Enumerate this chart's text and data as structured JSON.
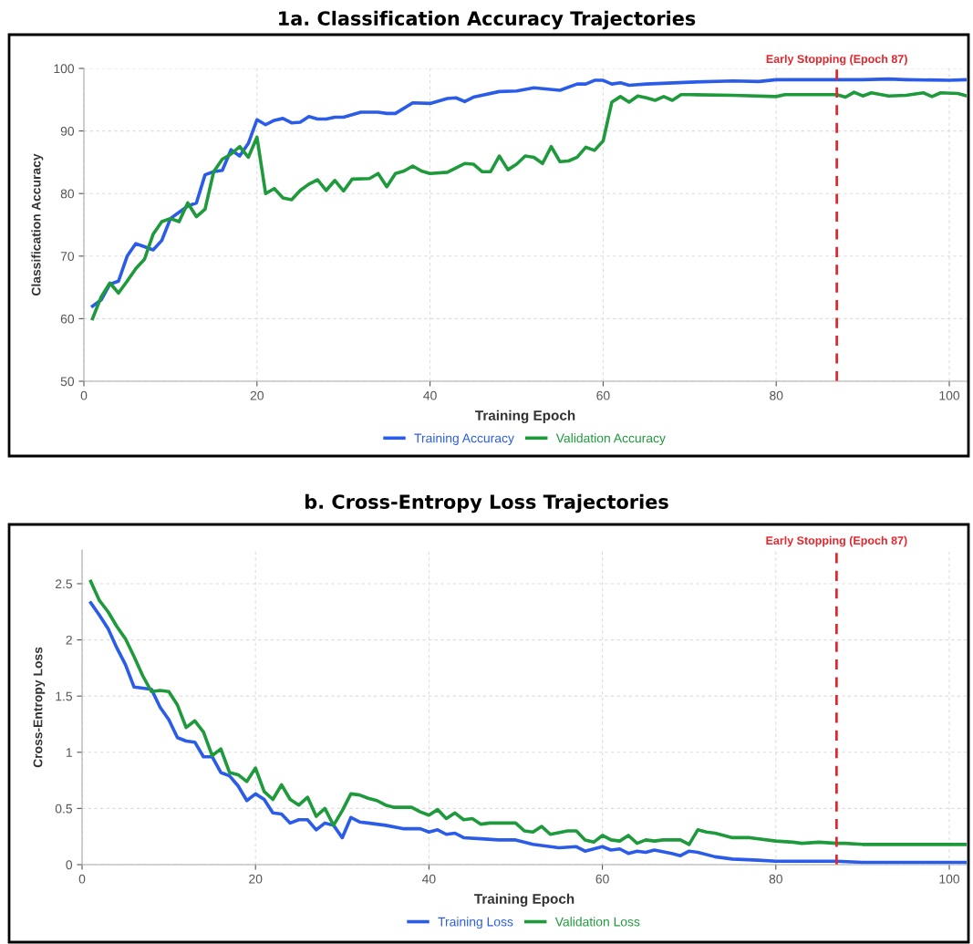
{
  "chart_data": [
    {
      "type": "line",
      "title": "1a. Classification Accuracy Trajectories",
      "xlabel": "Training Epoch",
      "ylabel": "Classification Accuracy",
      "xlim": [
        0,
        102
      ],
      "xticks": [
        0,
        20,
        40,
        60,
        80,
        100
      ],
      "ylim": [
        50,
        100
      ],
      "yticks": [
        50,
        60,
        70,
        80,
        90,
        100
      ],
      "grid": true,
      "legend": "bottom",
      "ref_lines": [
        {
          "axis": "x",
          "value": 87,
          "label": "Early Stopping (Epoch 87)",
          "color": "#e0282e",
          "line_style": "dashed"
        }
      ],
      "series": [
        {
          "name": "Training Accuracy",
          "color": "#2b5ce8",
          "x": [
            1,
            2,
            3,
            4,
            5,
            6,
            7,
            8,
            9,
            10,
            11,
            12,
            13,
            14,
            15,
            16,
            17,
            18,
            19,
            20,
            21,
            22,
            23,
            24,
            25,
            26,
            27,
            28,
            29,
            30,
            32,
            34,
            35,
            36,
            38,
            40,
            42,
            43,
            44,
            45,
            48,
            50,
            52,
            55,
            57,
            58,
            59,
            60,
            61,
            62,
            63,
            65,
            70,
            75,
            78,
            80,
            90,
            93,
            95,
            100,
            102
          ],
          "values": [
            62,
            63,
            65.5,
            66,
            70,
            72,
            71.5,
            71,
            72.5,
            76,
            77,
            78,
            78.5,
            83,
            83.5,
            83.7,
            87,
            86,
            88,
            91.8,
            91,
            91.7,
            92,
            91.3,
            91.4,
            92.3,
            91.9,
            91.9,
            92.2,
            92.2,
            93,
            93,
            92.8,
            92.8,
            94.5,
            94.4,
            95.2,
            95.3,
            94.7,
            95.4,
            96.3,
            96.4,
            96.9,
            96.5,
            97.5,
            97.5,
            98.1,
            98.1,
            97.5,
            97.7,
            97.3,
            97.5,
            97.8,
            98.0,
            97.9,
            98.2,
            98.2,
            98.3,
            98.2,
            98.1,
            98.2
          ]
        },
        {
          "name": "Validation Accuracy",
          "color": "#1e9a3c",
          "x": [
            1,
            2,
            3,
            4,
            5,
            6,
            7,
            8,
            9,
            10,
            11,
            12,
            13,
            14,
            15,
            16,
            17,
            18,
            19,
            20,
            21,
            22,
            23,
            24,
            25,
            26,
            27,
            28,
            29,
            30,
            31,
            33,
            34,
            35,
            36,
            37,
            38,
            39,
            40,
            42,
            43,
            44,
            45,
            46,
            47,
            48,
            49,
            50,
            51,
            52,
            53,
            54,
            55,
            56,
            57,
            58,
            59,
            60,
            61,
            62,
            63,
            64,
            65,
            66,
            67,
            68,
            69,
            70,
            75,
            80,
            81,
            85,
            87,
            88,
            89,
            90,
            91,
            93,
            95,
            97,
            98,
            99,
            101,
            102
          ],
          "values": [
            60,
            63.5,
            65.7,
            64.1,
            66,
            68,
            69.5,
            73.5,
            75.5,
            76,
            75.5,
            78.5,
            76.3,
            77.5,
            83.5,
            85.5,
            86.3,
            87.5,
            85.8,
            89,
            80,
            80.8,
            79.3,
            79,
            80.5,
            81.5,
            82.2,
            80.5,
            82.1,
            80.4,
            82.3,
            82.4,
            83.2,
            81.1,
            83.2,
            83.6,
            84.4,
            83.6,
            83.2,
            83.4,
            84.1,
            84.8,
            84.7,
            83.5,
            83.5,
            86,
            83.8,
            84.7,
            86,
            85.8,
            84.8,
            87.5,
            85.1,
            85.2,
            85.8,
            87.4,
            86.9,
            88.4,
            94.6,
            95.5,
            94.6,
            95.6,
            95.3,
            94.9,
            95.5,
            94.9,
            95.8,
            95.8,
            95.7,
            95.5,
            95.8,
            95.8,
            95.8,
            95.4,
            96.2,
            95.6,
            96.1,
            95.6,
            95.7,
            96.1,
            95.5,
            96.1,
            96.0,
            95.6
          ]
        }
      ]
    },
    {
      "type": "line",
      "title": "b. Cross-Entropy Loss Trajectories",
      "xlabel": "Training Epoch",
      "ylabel": "Cross-Entropy Loss",
      "xlim": [
        0,
        102
      ],
      "xticks": [
        0,
        20,
        40,
        60,
        80,
        100
      ],
      "ylim": [
        0,
        2.8
      ],
      "yticks": [
        0,
        0.5,
        1,
        1.5,
        2,
        2.5
      ],
      "grid": true,
      "legend": "bottom",
      "ref_lines": [
        {
          "axis": "x",
          "value": 87,
          "label": "Early Stopping (Epoch 87)",
          "color": "#e0282e",
          "line_style": "dashed"
        }
      ],
      "series": [
        {
          "name": "Training Loss",
          "color": "#2b5ce8",
          "x": [
            1,
            2,
            3,
            4,
            5,
            6,
            7,
            8,
            9,
            10,
            11,
            12,
            13,
            14,
            15,
            16,
            17,
            18,
            19,
            20,
            21,
            22,
            23,
            24,
            25,
            26,
            27,
            28,
            29,
            30,
            31,
            32,
            33,
            35,
            37,
            39,
            40,
            41,
            42,
            43,
            44,
            46,
            48,
            50,
            52,
            55,
            57,
            58,
            60,
            61,
            62,
            63,
            64,
            65,
            66,
            68,
            69,
            70,
            71,
            73,
            75,
            78,
            80,
            85,
            87,
            90,
            95,
            100,
            102
          ],
          "values": [
            2.33,
            2.22,
            2.1,
            1.93,
            1.78,
            1.58,
            1.57,
            1.56,
            1.4,
            1.29,
            1.13,
            1.1,
            1.09,
            0.96,
            0.96,
            0.82,
            0.79,
            0.7,
            0.57,
            0.63,
            0.58,
            0.46,
            0.45,
            0.37,
            0.4,
            0.4,
            0.31,
            0.37,
            0.35,
            0.24,
            0.42,
            0.38,
            0.37,
            0.35,
            0.32,
            0.32,
            0.29,
            0.31,
            0.27,
            0.28,
            0.24,
            0.23,
            0.22,
            0.22,
            0.18,
            0.15,
            0.16,
            0.12,
            0.16,
            0.13,
            0.14,
            0.1,
            0.12,
            0.11,
            0.13,
            0.1,
            0.08,
            0.12,
            0.11,
            0.07,
            0.05,
            0.04,
            0.03,
            0.03,
            0.03,
            0.02,
            0.02,
            0.02,
            0.02
          ]
        },
        {
          "name": "Validation Loss",
          "color": "#1e9a3c",
          "x": [
            1,
            2,
            3,
            4,
            5,
            6,
            7,
            8,
            9,
            10,
            11,
            12,
            13,
            14,
            15,
            16,
            17,
            18,
            19,
            20,
            21,
            22,
            23,
            24,
            25,
            26,
            27,
            28,
            29,
            30,
            31,
            32,
            33,
            34,
            35,
            36,
            38,
            39,
            40,
            41,
            42,
            43,
            44,
            45,
            46,
            47,
            50,
            51,
            52,
            53,
            54,
            56,
            57,
            58,
            59,
            60,
            61,
            62,
            63,
            64,
            65,
            66,
            67,
            68,
            69,
            70,
            71,
            72,
            73,
            75,
            77,
            80,
            82,
            83,
            85,
            87,
            88,
            90,
            95,
            100,
            102
          ],
          "values": [
            2.52,
            2.35,
            2.25,
            2.12,
            2.01,
            1.85,
            1.68,
            1.54,
            1.55,
            1.54,
            1.42,
            1.22,
            1.28,
            1.18,
            0.97,
            1.03,
            0.82,
            0.8,
            0.74,
            0.86,
            0.65,
            0.58,
            0.71,
            0.58,
            0.53,
            0.6,
            0.43,
            0.5,
            0.35,
            0.48,
            0.63,
            0.62,
            0.59,
            0.57,
            0.53,
            0.51,
            0.51,
            0.47,
            0.44,
            0.49,
            0.41,
            0.46,
            0.4,
            0.41,
            0.36,
            0.37,
            0.37,
            0.3,
            0.29,
            0.34,
            0.27,
            0.3,
            0.3,
            0.22,
            0.2,
            0.26,
            0.22,
            0.21,
            0.26,
            0.19,
            0.22,
            0.21,
            0.22,
            0.22,
            0.22,
            0.18,
            0.31,
            0.29,
            0.28,
            0.24,
            0.24,
            0.21,
            0.2,
            0.19,
            0.2,
            0.19,
            0.19,
            0.18,
            0.18,
            0.18,
            0.18
          ]
        }
      ]
    }
  ]
}
